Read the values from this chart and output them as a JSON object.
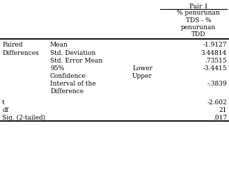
{
  "pair1_label": "Pair 1",
  "col_subheader": [
    "% penurunan",
    "TDS - %",
    "penurunan",
    "TDD"
  ],
  "rows": [
    {
      "c0": "Paired",
      "c1": "Mean",
      "c2": "",
      "c3": "-1.9127"
    },
    {
      "c0": "Differences",
      "c1": "Std. Deviation",
      "c2": "",
      "c3": "3.44814"
    },
    {
      "c0": "",
      "c1": "Std. Error Mean",
      "c2": "",
      "c3": ".73515"
    },
    {
      "c0": "",
      "c1": "95%",
      "c2": "Lower",
      "c3": "-3.4415"
    },
    {
      "c0": "",
      "c1": "Confidence",
      "c2": "Upper",
      "c3": ""
    },
    {
      "c0": "",
      "c1": "Interval of the",
      "c2": "",
      "c3": "-.3839"
    },
    {
      "c0": "",
      "c1": "Difference",
      "c2": "",
      "c3": ""
    },
    {
      "c0": "t",
      "c1": "",
      "c2": "",
      "c3": "-2.602"
    },
    {
      "c0": "df",
      "c1": "",
      "c2": "",
      "c3": "21"
    },
    {
      "c0": "Sig. (2-tailed)",
      "c1": "",
      "c2": "",
      "c3": ".017"
    }
  ],
  "bg_color": "#ffffff",
  "text_color": "#000000",
  "font_size": 6.5
}
